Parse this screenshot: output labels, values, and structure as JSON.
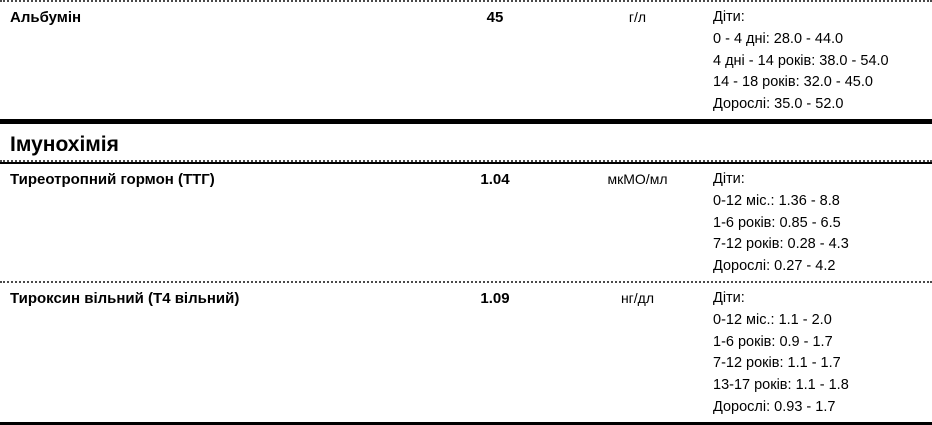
{
  "report": {
    "sections": [
      {
        "rows": [
          {
            "name": "Альбумін",
            "value": "45",
            "unit": "г/л",
            "ranges": [
              "Діти:",
              "0 - 4 дні: 28.0 - 44.0",
              "4 дні - 14 років: 38.0 - 54.0",
              "14 - 18 років: 32.0 - 45.0",
              "Дорослі: 35.0 - 52.0"
            ]
          }
        ]
      },
      {
        "title": "Імунохімія",
        "rows": [
          {
            "name": "Тиреотропний гормон (ТТГ)",
            "value": "1.04",
            "unit": "мкМО/мл",
            "ranges": [
              "Діти:",
              "0-12 міс.: 1.36 - 8.8",
              "1-6 років: 0.85 - 6.5",
              "7-12 років: 0.28 - 4.3",
              "Дорослі: 0.27 - 4.2"
            ]
          },
          {
            "name": "Тироксин вільний (Т4 вільний)",
            "value": "1.09",
            "unit": "нг/дл",
            "ranges": [
              "Діти:",
              "0-12 міс.: 1.1 - 2.0",
              "1-6 років: 0.9 - 1.7",
              "7-12 років: 1.1 - 1.7",
              "13-17 років: 1.1 - 1.8",
              "Дорослі: 0.93 - 1.7"
            ]
          }
        ]
      }
    ]
  },
  "colors": {
    "text": "#000000",
    "thick_line": "#000000",
    "dotted_line": "#4a4a4a"
  }
}
